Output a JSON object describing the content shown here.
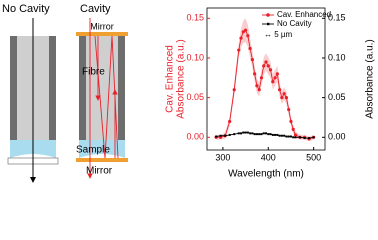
{
  "diagram": {
    "labels": [
      "No Cavity",
      "Cavity",
      "Mirror",
      "Fibre",
      "Sample",
      "Mirror"
    ]
  },
  "chart_data": {
    "type": "line",
    "xlabel": "Wavelength (nm)",
    "ylabel": [
      "Cav. Enhanced",
      "Absorbance (a.u.)"
    ],
    "y2label": "Absorbance (a.u.)",
    "legend_note": "↔ 5 µm",
    "xlim": [
      265,
      525
    ],
    "xticks": [
      300,
      400,
      500
    ],
    "ylim": [
      -0.016,
      0.163
    ],
    "yticks": [
      {
        "value": 0,
        "label": "0.00"
      },
      {
        "value": 0.05,
        "label": "0.05"
      },
      {
        "value": 0.1,
        "label": "0.10"
      },
      {
        "value": 0.15,
        "label": "0.15"
      }
    ],
    "y2lim": [
      -0.016,
      0.163
    ],
    "y2ticks": [
      {
        "value": 0,
        "label": "0.00"
      },
      {
        "value": 0.05,
        "label": "0.05"
      },
      {
        "value": 0.1,
        "label": "0.10"
      },
      {
        "value": 0.15,
        "label": "0.15"
      }
    ],
    "x": [
      285,
      295,
      305,
      315,
      325,
      335,
      340,
      345,
      350,
      355,
      360,
      365,
      370,
      375,
      380,
      385,
      390,
      395,
      400,
      405,
      410,
      415,
      420,
      425,
      430,
      435,
      440,
      445,
      450,
      455,
      460,
      470,
      480,
      490,
      500
    ],
    "series": [
      {
        "name": "Cav. Enhanced",
        "color": "#e8202a",
        "values": [
          0.0,
          0.0,
          0.002,
          0.02,
          0.06,
          0.11,
          0.125,
          0.133,
          0.135,
          0.128,
          0.112,
          0.098,
          0.08,
          0.065,
          0.06,
          0.075,
          0.09,
          0.095,
          0.09,
          0.085,
          0.07,
          0.075,
          0.08,
          0.06,
          0.05,
          0.055,
          0.05,
          0.035,
          0.02,
          0.01,
          0.003,
          0.0,
          0.0,
          -0.002,
          0.0
        ],
        "errors": [
          0.003,
          0.003,
          0.004,
          0.006,
          0.008,
          0.01,
          0.012,
          0.014,
          0.015,
          0.014,
          0.012,
          0.011,
          0.01,
          0.009,
          0.009,
          0.01,
          0.011,
          0.011,
          0.011,
          0.01,
          0.01,
          0.01,
          0.01,
          0.009,
          0.008,
          0.008,
          0.008,
          0.007,
          0.006,
          0.005,
          0.004,
          0.003,
          0.003,
          0.003,
          0.003
        ]
      },
      {
        "name": "No Cavity",
        "color": "#000000",
        "axis": "y2",
        "values": [
          0.001,
          0.002,
          0.002,
          0.003,
          0.004,
          0.005,
          0.005,
          0.006,
          0.006,
          0.006,
          0.005,
          0.005,
          0.004,
          0.004,
          0.004,
          0.004,
          0.005,
          0.005,
          0.004,
          0.004,
          0.003,
          0.003,
          0.003,
          0.002,
          0.002,
          0.002,
          0.001,
          0.001,
          0.001,
          0.0,
          0.0,
          0.0,
          -0.001,
          -0.001,
          0.0
        ]
      }
    ]
  }
}
